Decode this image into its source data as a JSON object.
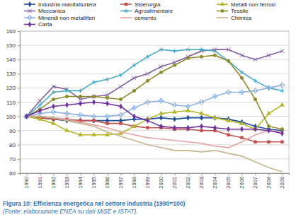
{
  "chart_data": {
    "type": "line",
    "caption": "Figura 10: Efficienza energetica nel settore industria (1990=100)",
    "source": "(Fonte: elaborazione ENEA su dati MiSE e ISTAT).",
    "categories": [
      "1990",
      "1991",
      "1992",
      "1993",
      "1994",
      "1995",
      "1996",
      "1997",
      "1998",
      "1999",
      "2000",
      "2001",
      "2002",
      "2003",
      "2004",
      "2005",
      "2006",
      "2007",
      "2008",
      "2009"
    ],
    "ylim": [
      60,
      160
    ],
    "yticks": [
      60,
      70,
      80,
      90,
      100,
      110,
      120,
      130,
      140,
      150,
      160
    ],
    "grid": true,
    "legend": "top",
    "series": [
      {
        "name": "Industria manifatturiera",
        "color": "#1f4e9c",
        "marker": "diamond",
        "values": [
          100,
          99,
          98,
          97,
          97,
          97,
          97,
          97,
          98,
          98,
          99,
          98,
          99,
          99,
          99,
          98,
          96,
          93,
          91,
          90
        ]
      },
      {
        "name": "Siderurgia",
        "color": "#c0504d",
        "marker": "square",
        "values": [
          100,
          99,
          98,
          98,
          97,
          97,
          95,
          95,
          93,
          92,
          92,
          91,
          91,
          90,
          90,
          87,
          85,
          82,
          82,
          82
        ]
      },
      {
        "name": "Metalli non ferrosi",
        "color": "#b5b52a",
        "marker": "triangle",
        "values": [
          100,
          98,
          95,
          90,
          87,
          87,
          87,
          88,
          93,
          98,
          102,
          103,
          104,
          102,
          99,
          97,
          95,
          91,
          102,
          108
        ]
      },
      {
        "name": "Meccanica",
        "color": "#7f5fa0",
        "marker": "x",
        "values": [
          100,
          111,
          121,
          119,
          112,
          114,
          115,
          121,
          127,
          130,
          135,
          138,
          142,
          146,
          147,
          147,
          143,
          140,
          143,
          146
        ]
      },
      {
        "name": "Agroalimentare",
        "color": "#4bacc6",
        "marker": "star",
        "values": [
          100,
          108,
          117,
          118,
          118,
          124,
          126,
          129,
          136,
          142,
          147,
          146,
          147,
          147,
          146,
          139,
          131,
          125,
          120,
          118
        ]
      },
      {
        "name": "Tessile",
        "color": "#8c8c2e",
        "marker": "circle",
        "values": [
          100,
          105,
          112,
          114,
          114,
          114,
          113,
          112,
          118,
          125,
          131,
          136,
          141,
          142,
          143,
          139,
          127,
          112,
          93,
          91
        ]
      },
      {
        "name": "Minerali non metalliferi",
        "color": "#8eb4e3",
        "marker": "cross",
        "values": [
          100,
          102,
          103,
          102,
          101,
          100,
          100,
          101,
          106,
          110,
          111,
          108,
          107,
          110,
          114,
          117,
          117,
          118,
          120,
          122
        ]
      },
      {
        "name": "cemento",
        "color": "#e6a0a0",
        "marker": "none",
        "values": [
          100,
          100,
          99,
          98,
          96,
          94,
          92,
          89,
          87,
          85,
          84,
          83,
          82,
          81,
          79,
          78,
          82,
          87,
          90,
          89
        ]
      },
      {
        "name": "Chimica",
        "color": "#c4b48a",
        "marker": "none",
        "values": [
          100,
          100,
          99,
          97,
          95,
          93,
          89,
          86,
          83,
          80,
          78,
          76,
          76,
          75,
          76,
          74,
          72,
          68,
          64,
          61
        ]
      },
      {
        "name": "Carta",
        "color": "#7030a0",
        "marker": "diamond",
        "values": [
          100,
          104,
          107,
          108,
          109,
          110,
          109,
          107,
          100,
          97,
          93,
          92,
          92,
          93,
          92,
          91,
          91,
          91,
          90,
          88
        ]
      }
    ]
  }
}
